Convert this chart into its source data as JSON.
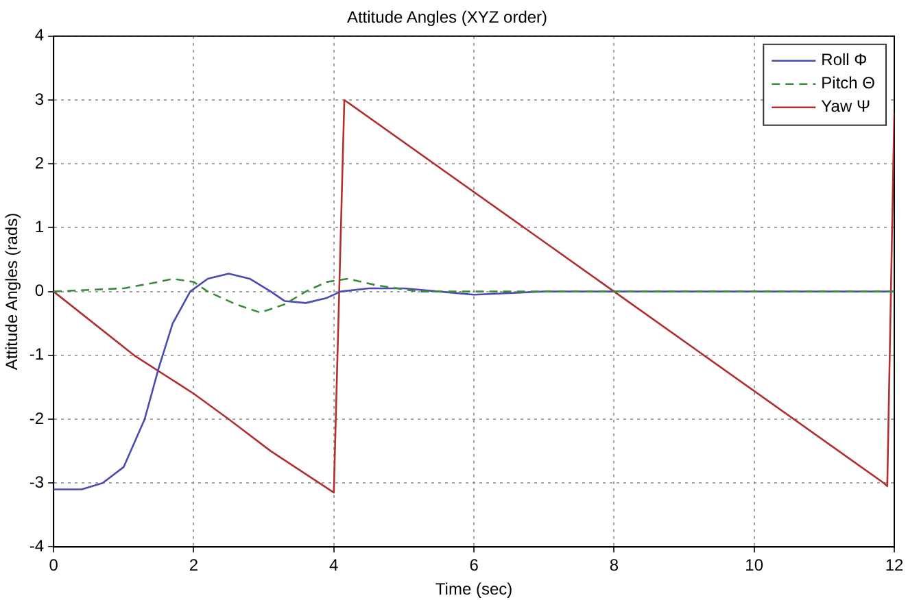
{
  "chart_data": {
    "type": "line",
    "title": "Attitude Angles (XYZ order)",
    "xlabel": "Time (sec)",
    "ylabel": "Attitude Angles (rads)",
    "xlim": [
      0,
      12
    ],
    "xticks": [
      0,
      2,
      4,
      6,
      8,
      10,
      12
    ],
    "ylim": [
      -4,
      4
    ],
    "yticks": [
      -4,
      -3,
      -2,
      -1,
      0,
      1,
      2,
      3,
      4
    ],
    "grid": true,
    "legend": "top right",
    "marker": "none",
    "line_style": "solid",
    "series": [
      {
        "name": "Roll Φ",
        "color": "#4a4ab0",
        "x": [
          0,
          0.4,
          0.7,
          1.0,
          1.3,
          1.5,
          1.7,
          1.95,
          2.2,
          2.5,
          2.8,
          3.1,
          3.3,
          3.6,
          3.9,
          4.1,
          4.5,
          5,
          5.5,
          6,
          7,
          8,
          10,
          12
        ],
        "values": [
          -3.1,
          -3.1,
          -3.0,
          -2.75,
          -2,
          -1.2,
          -0.5,
          0,
          0.2,
          0.28,
          0.2,
          0,
          -0.15,
          -0.18,
          -0.1,
          0,
          0.05,
          0.05,
          0,
          -0.05,
          0,
          0,
          0,
          0
        ]
      },
      {
        "name": "Pitch Θ",
        "color": "#3a8a3a",
        "line_style": "dashed",
        "x": [
          0,
          1,
          1.5,
          1.7,
          2.0,
          2.2,
          2.6,
          2.95,
          3.3,
          3.6,
          3.9,
          4.2,
          4.6,
          5.2,
          6,
          8,
          10,
          12
        ],
        "values": [
          0,
          0.05,
          0.15,
          0.2,
          0.15,
          0,
          -0.2,
          -0.33,
          -0.2,
          0,
          0.15,
          0.2,
          0.1,
          0,
          0,
          0,
          0,
          0
        ]
      },
      {
        "name": "Yaw Ψ",
        "color": "#b03030",
        "x": [
          0,
          1.15,
          2,
          2.5,
          3.1,
          4.0,
          4.15,
          8,
          11.85,
          11.9,
          12
        ],
        "values": [
          0,
          -1,
          -1.6,
          -2,
          -2.5,
          -3.15,
          3,
          0,
          -3,
          -3.05,
          2.8
        ]
      }
    ]
  }
}
